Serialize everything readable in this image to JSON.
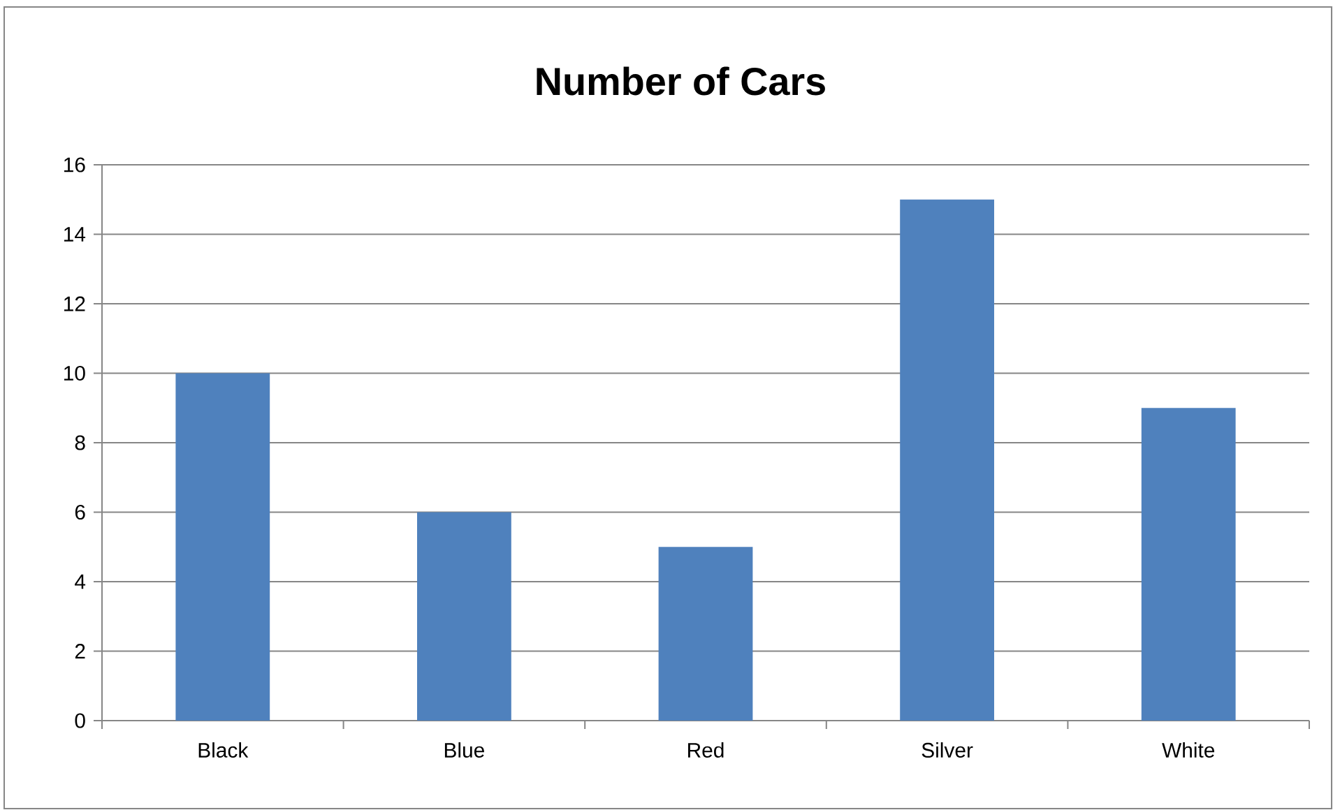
{
  "chart_data": {
    "type": "bar",
    "title": "Number of Cars",
    "categories": [
      "Black",
      "Blue",
      "Red",
      "Silver",
      "White"
    ],
    "values": [
      10,
      6,
      5,
      15,
      9
    ],
    "color": "#4f81bd",
    "ylim": [
      0,
      16
    ],
    "yticks": [
      0,
      2,
      4,
      6,
      8,
      10,
      12,
      14,
      16
    ],
    "grid": "y"
  }
}
